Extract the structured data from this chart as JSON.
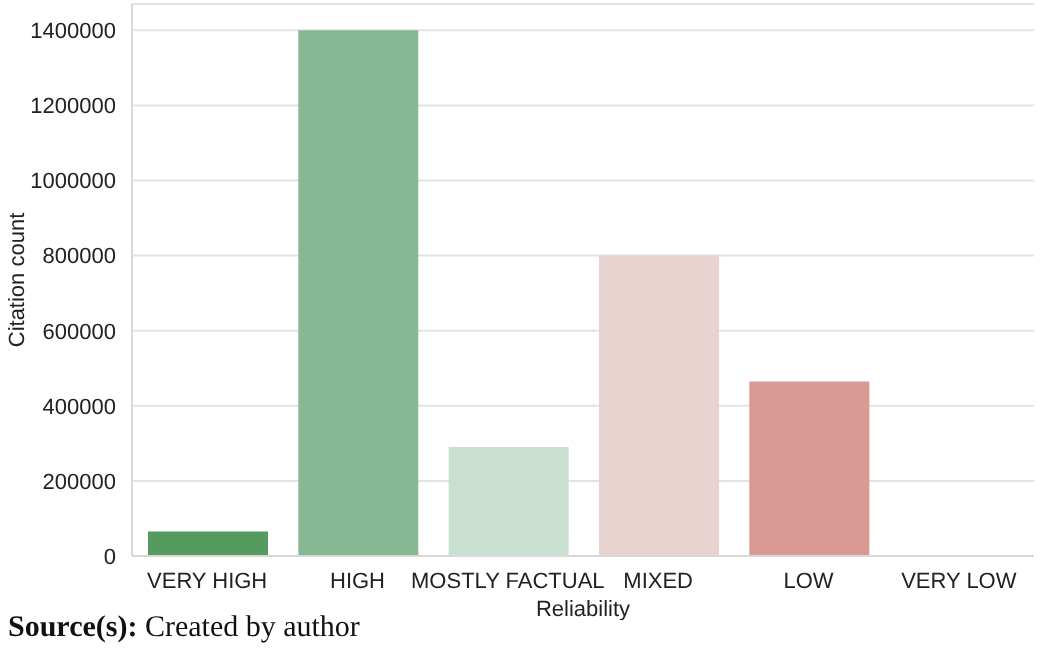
{
  "chart_data": {
    "type": "bar",
    "xlabel": "Reliability",
    "ylabel": "Citation count",
    "categories": [
      "VERY HIGH",
      "HIGH",
      "MOSTLY FACTUAL",
      "MIXED",
      "LOW",
      "VERY LOW"
    ],
    "values": [
      65000,
      1400000,
      290000,
      800000,
      465000,
      0
    ],
    "colors": [
      "#559a5e",
      "#86b894",
      "#c9dfd0",
      "#e8d3d1",
      "#d99a94",
      "#c8605a"
    ],
    "ylim": [
      0,
      1470000
    ],
    "yticks": [
      0,
      200000,
      400000,
      600000,
      800000,
      1000000,
      1200000,
      1400000
    ],
    "grid": "y",
    "annotations": [
      "Source(s): Created by author"
    ]
  }
}
